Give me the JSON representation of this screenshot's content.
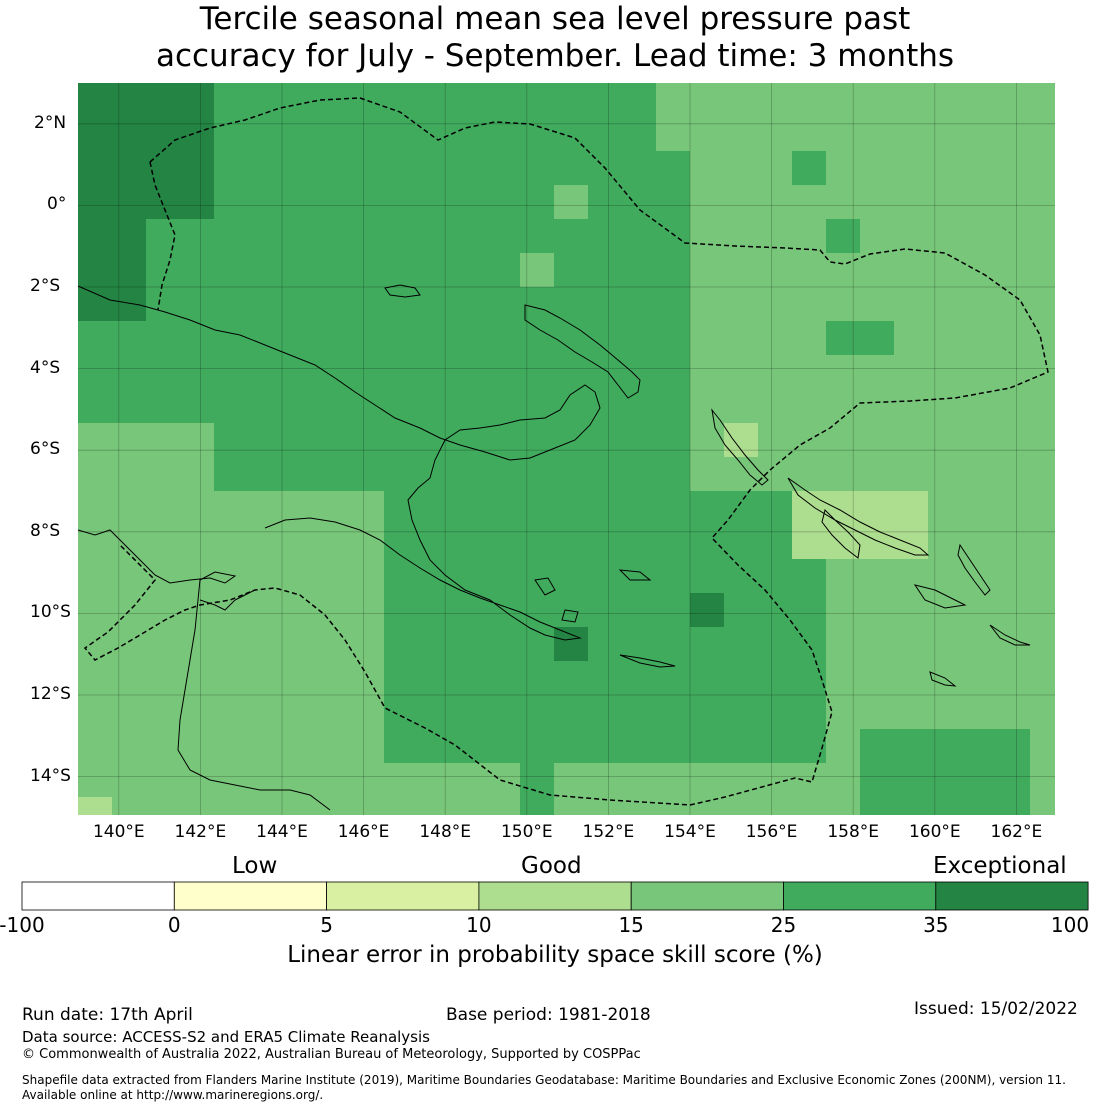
{
  "title_line1": "Tercile seasonal mean sea level pressure past",
  "title_line2": "accuracy for July - September. Lead time: 3 months",
  "lon_labels": [
    "140°E",
    "142°E",
    "144°E",
    "146°E",
    "148°E",
    "150°E",
    "152°E",
    "154°E",
    "156°E",
    "158°E",
    "160°E",
    "162°E"
  ],
  "lat_labels": [
    "2°N",
    "0°",
    "2°S",
    "4°S",
    "6°S",
    "8°S",
    "10°S",
    "12°S",
    "14°S"
  ],
  "colorbar": {
    "categories": [
      "Low",
      "Good",
      "Exceptional"
    ],
    "ticks": [
      "-100",
      "0",
      "5",
      "10",
      "15",
      "25",
      "35",
      "100"
    ],
    "colors": [
      "#ffffff",
      "#ffffcc",
      "#d9f0a3",
      "#addd8e",
      "#78c679",
      "#41ab5d",
      "#238443"
    ],
    "label": "Linear error in probability space skill score (%)"
  },
  "footer": {
    "run_date": "Run date: 17th April",
    "base_period": "Base period: 1981-2018",
    "issued": "Issued: 15/02/2022",
    "data_source": "Data source: ACCESS-S2 and ERA5 Climate Reanalysis",
    "copyright": "© Commonwealth of Australia 2022, Australian Bureau of Meteorology, Supported by COSPPac",
    "shapefile_line1": "Shapefile data extracted from Flanders Marine Institute (2019), Maritime Boundaries Geodatabase: Maritime Boundaries and Exclusive Economic Zones (200NM), version 11.",
    "shapefile_line2": "Available online at http://www.marineregions.org/."
  }
}
